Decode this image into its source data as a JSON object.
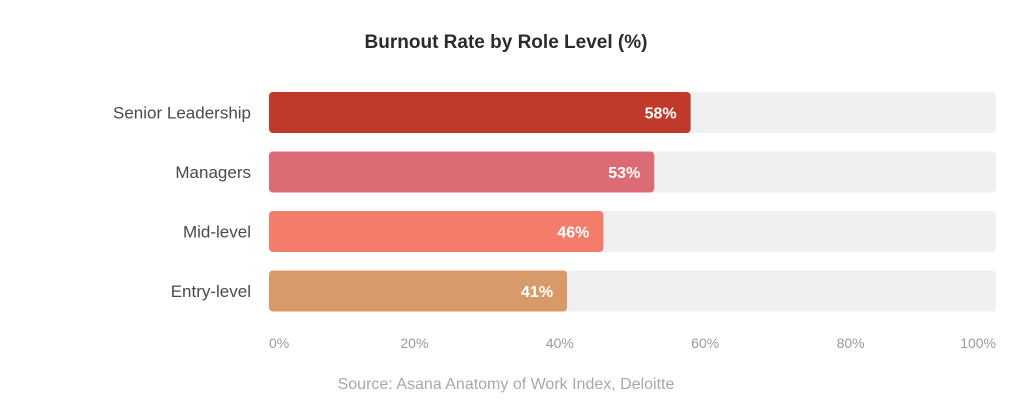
{
  "chart_data": {
    "type": "bar",
    "orientation": "horizontal",
    "title": "Burnout Rate by Role Level (%)",
    "categories": [
      "Senior Leadership",
      "Managers",
      "Mid-level",
      "Entry-level"
    ],
    "values": [
      58,
      53,
      46,
      41
    ],
    "value_labels": [
      "58%",
      "53%",
      "46%",
      "41%"
    ],
    "colors": [
      "#c0392b",
      "#db6b74",
      "#f47c6b",
      "#d89a68"
    ],
    "track_color": "#f0f0f0",
    "xlim": [
      0,
      100
    ],
    "x_ticks": [
      0,
      20,
      40,
      60,
      80,
      100
    ],
    "x_tick_labels": [
      "0%",
      "20%",
      "40%",
      "60%",
      "80%",
      "100%"
    ],
    "grid": false,
    "legend": "none"
  },
  "source": "Source: Asana Anatomy of Work Index, Deloitte"
}
